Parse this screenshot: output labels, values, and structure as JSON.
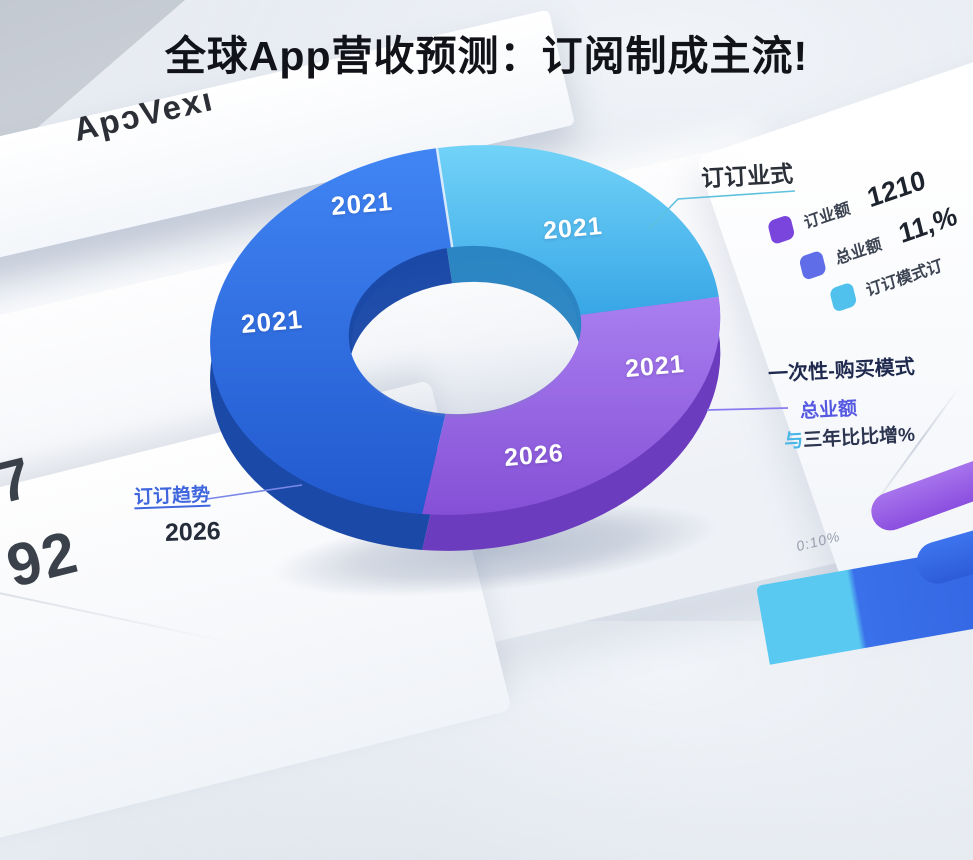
{
  "title": "全球App营收预测：订阅制成主流!",
  "logo": "ApɔVexı",
  "background_sheet": {
    "number_top": "7",
    "number_bottom": "92"
  },
  "callouts": {
    "subscription_model": "订订业式",
    "one_time_purchase": "一次性-购买模式",
    "total_revenue": "总业额",
    "yoy_prefix": "与",
    "yoy_rest": "三年比比增%",
    "trend_label": "订订趋势",
    "trend_year": "2026"
  },
  "legend": {
    "rows": [
      {
        "label": "订业额",
        "value": "1210",
        "color": "#7a45dd"
      },
      {
        "label": "总业额",
        "value": "11,%",
        "color": "#5f6ee8"
      },
      {
        "label": "订订模式订",
        "value": "",
        "color": "#4fc1ec"
      }
    ]
  },
  "deco": {
    "caption": "0:10%",
    "bar_colors": [
      "#9a63e8",
      "#3a6ce8",
      "#59c9f1"
    ]
  },
  "chart_data": {
    "type": "pie",
    "donut": true,
    "title": "全球App营收预测：订阅制成主流!",
    "legend_position": "right",
    "segments": [
      {
        "name": "cyan-segment",
        "slice_label": "2021",
        "start_angle": -2,
        "end_angle": 88,
        "percent_est": 25,
        "color_hi": "#72d3f8",
        "color_lo": "#38a6e6",
        "color_side": "#2a85c2"
      },
      {
        "name": "purple-segment",
        "slice_label": "2021 / 2026",
        "start_angle": 88,
        "end_angle": 194,
        "percent_est": 29,
        "color_hi": "#a97ff0",
        "color_lo": "#8550d6",
        "color_side": "#6c3cbe"
      },
      {
        "name": "blue-segment",
        "slice_label": "2021 / 2021",
        "start_angle": 194,
        "end_angle": 358,
        "percent_est": 46,
        "color_hi": "#4185f4",
        "color_lo": "#2159ce",
        "color_side": "#1b49a8"
      }
    ],
    "slice_labels": [
      {
        "text": "2021"
      },
      {
        "text": "2021"
      },
      {
        "text": "2021"
      },
      {
        "text": "2021"
      },
      {
        "text": "2026"
      }
    ],
    "stats": [
      {
        "label": "订业额",
        "value": "1210"
      },
      {
        "label": "总业额",
        "value": "11,%"
      },
      {
        "label": "订订模式订",
        "value": ""
      }
    ]
  }
}
